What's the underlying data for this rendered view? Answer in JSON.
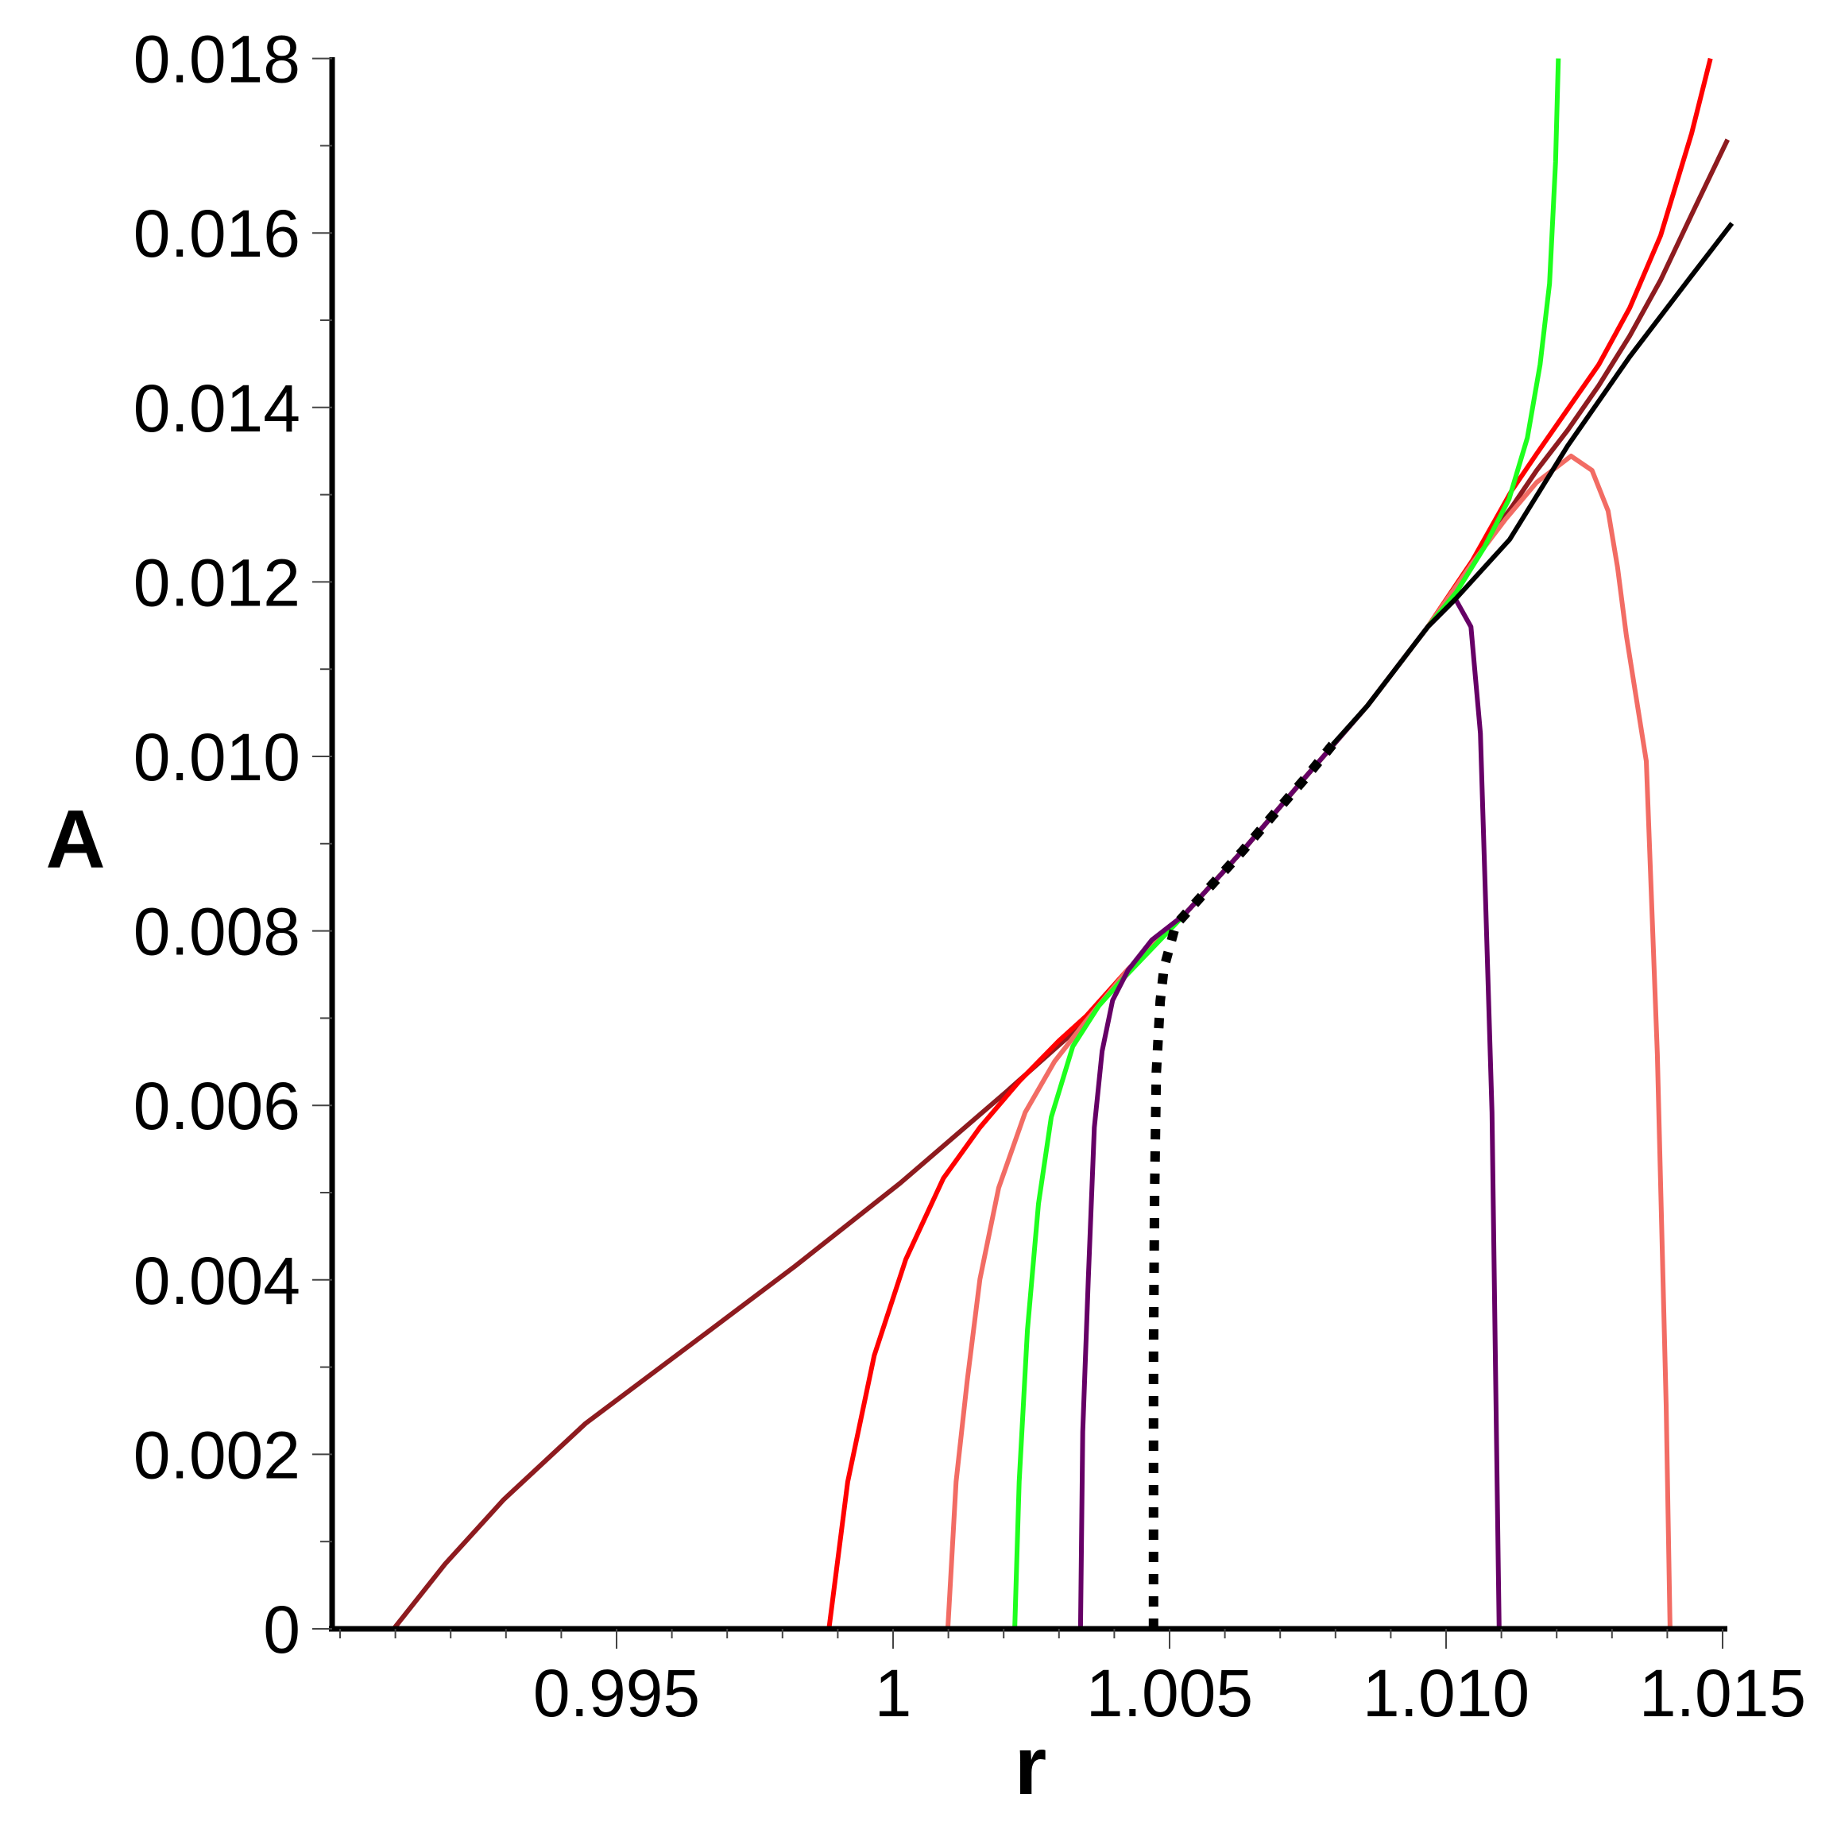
{
  "chart_data": {
    "type": "line",
    "title": "",
    "xlabel": "r",
    "ylabel": "A",
    "xlim": [
      0.98984,
      1.015
    ],
    "ylim": [
      0,
      0.018
    ],
    "grid": false,
    "legend": null,
    "x_ticks": {
      "major": [
        0.995,
        1.0,
        1.005,
        1.01,
        1.015
      ],
      "labels": [
        "0.995",
        "1",
        "1.005",
        "1.010",
        "1.015"
      ],
      "minor_step": 0.001
    },
    "y_ticks": {
      "major": [
        0,
        0.002,
        0.004,
        0.006,
        0.008,
        0.01,
        0.012,
        0.014,
        0.016,
        0.018
      ],
      "labels": [
        "0",
        "0.002",
        "0.004",
        "0.006",
        "0.008",
        "0.010",
        "0.012",
        "0.014",
        "0.016",
        "0.018"
      ],
      "minor_step": 0.001
    },
    "series": [
      {
        "name": "brown",
        "color": "#8E1B1F",
        "style": "solid",
        "points": [
          [
            0.99097,
            0
          ],
          [
            0.9919,
            0.000743
          ],
          [
            0.99296,
            0.001482
          ],
          [
            0.99444,
            0.002354
          ],
          [
            0.99656,
            0.003362
          ],
          [
            0.99822,
            0.004153
          ],
          [
            1.00013,
            0.005109
          ],
          [
            1.00205,
            0.006157
          ],
          [
            1.00349,
            0.006967
          ],
          [
            1.00425,
            0.00755
          ],
          [
            1.00527,
            0.008188
          ],
          [
            1.00638,
            0.008962
          ],
          [
            1.00747,
            0.009772
          ],
          [
            1.00858,
            0.010583
          ],
          [
            1.00967,
            0.011485
          ],
          [
            1.01048,
            0.01224
          ],
          [
            1.01119,
            0.01286
          ],
          [
            1.01164,
            0.01328
          ],
          [
            1.0122,
            0.01374
          ],
          [
            1.01276,
            0.01425
          ],
          [
            1.01332,
            0.01482
          ],
          [
            1.01388,
            0.01546
          ],
          [
            1.01444,
            0.01621
          ],
          [
            1.01509,
            0.01707
          ]
        ]
      },
      {
        "name": "red",
        "color": "#FF0000",
        "style": "solid",
        "points": [
          [
            0.99884,
            0
          ],
          [
            0.99918,
            0.001685
          ],
          [
            0.99966,
            0.003133
          ],
          [
            1.00023,
            0.004235
          ],
          [
            1.00091,
            0.005164
          ],
          [
            1.00157,
            0.005747
          ],
          [
            1.00228,
            0.006275
          ],
          [
            1.003,
            0.00674
          ],
          [
            1.00349,
            0.007022
          ],
          [
            1.00425,
            0.00756
          ],
          [
            1.00527,
            0.008188
          ],
          [
            1.00638,
            0.008962
          ],
          [
            1.00747,
            0.009772
          ],
          [
            1.00858,
            0.010583
          ],
          [
            1.00967,
            0.011485
          ],
          [
            1.01048,
            0.01225
          ],
          [
            1.01119,
            0.01305
          ],
          [
            1.01164,
            0.01347
          ],
          [
            1.0122,
            0.01398
          ],
          [
            1.01276,
            0.01449
          ],
          [
            1.01332,
            0.01514
          ],
          [
            1.01388,
            0.01597
          ],
          [
            1.01444,
            0.01714
          ],
          [
            1.01478,
            0.018
          ]
        ]
      },
      {
        "name": "salmon",
        "color": "#F26C64",
        "style": "solid",
        "points": [
          [
            1.00099,
            0
          ],
          [
            1.00114,
            0.001685
          ],
          [
            1.00134,
            0.002842
          ],
          [
            1.00157,
            0.004007
          ],
          [
            1.00191,
            0.005055
          ],
          [
            1.00239,
            0.00592
          ],
          [
            1.00292,
            0.006503
          ],
          [
            1.00349,
            0.006967
          ],
          [
            1.00425,
            0.00756
          ],
          [
            1.00527,
            0.008188
          ],
          [
            1.00638,
            0.008962
          ],
          [
            1.00747,
            0.009772
          ],
          [
            1.00858,
            0.010583
          ],
          [
            1.00967,
            0.011485
          ],
          [
            1.01048,
            0.01222
          ],
          [
            1.01108,
            0.012723
          ],
          [
            1.01164,
            0.013142
          ],
          [
            1.01226,
            0.013443
          ],
          [
            1.01264,
            0.013279
          ],
          [
            1.01293,
            0.012814
          ],
          [
            1.0131,
            0.012168
          ],
          [
            1.01326,
            0.011384
          ],
          [
            1.01362,
            0.009945
          ],
          [
            1.01382,
            0.006585
          ],
          [
            1.01398,
            0.002559
          ],
          [
            1.01405,
            0
          ]
        ]
      },
      {
        "name": "green",
        "color": "#1EFF1E",
        "style": "solid",
        "points": [
          [
            1.0022,
            0
          ],
          [
            1.00228,
            0.001685
          ],
          [
            1.00243,
            0.003424
          ],
          [
            1.00263,
            0.004872
          ],
          [
            1.00286,
            0.005865
          ],
          [
            1.00325,
            0.006676
          ],
          [
            1.00372,
            0.00714
          ],
          [
            1.00421,
            0.007486
          ],
          [
            1.00527,
            0.008188
          ],
          [
            1.00638,
            0.008962
          ],
          [
            1.00747,
            0.009772
          ],
          [
            1.00858,
            0.010583
          ],
          [
            1.00967,
            0.011485
          ],
          [
            1.01019,
            0.011885
          ],
          [
            1.01069,
            0.012395
          ],
          [
            1.01114,
            0.012951
          ],
          [
            1.01147,
            0.013652
          ],
          [
            1.0117,
            0.01449
          ],
          [
            1.01187,
            0.015419
          ],
          [
            1.01198,
            0.016812
          ],
          [
            1.01203,
            0.018
          ]
        ]
      },
      {
        "name": "purple",
        "color": "#660066",
        "style": "solid",
        "points": [
          [
            1.00339,
            0
          ],
          [
            1.00343,
            0.002259
          ],
          [
            1.00353,
            0.004007
          ],
          [
            1.00364,
            0.005747
          ],
          [
            1.00378,
            0.006621
          ],
          [
            1.00397,
            0.007204
          ],
          [
            1.00425,
            0.00755
          ],
          [
            1.00468,
            0.007896
          ],
          [
            1.00527,
            0.008188
          ],
          [
            1.00638,
            0.008962
          ],
          [
            1.00747,
            0.009772
          ],
          [
            1.00858,
            0.010583
          ],
          [
            1.00967,
            0.011485
          ],
          [
            1.01017,
            0.011803
          ],
          [
            1.01045,
            0.011485
          ],
          [
            1.01062,
            0.010264
          ],
          [
            1.01072,
            0.008233
          ],
          [
            1.01083,
            0.00592
          ],
          [
            1.01089,
            0.00319
          ],
          [
            1.01096,
            0
          ]
        ]
      },
      {
        "name": "black-dotted",
        "color": "#000000",
        "style": "dotted",
        "points": [
          [
            1.00471,
            0
          ],
          [
            1.00471,
            0.001366
          ],
          [
            1.00471,
            0.003188
          ],
          [
            1.00473,
            0.005009
          ],
          [
            1.00476,
            0.006375
          ],
          [
            1.00483,
            0.007195
          ],
          [
            1.0049,
            0.007577
          ],
          [
            1.00511,
            0.008069
          ],
          [
            1.00572,
            0.008497
          ],
          [
            1.00632,
            0.008916
          ],
          [
            1.00687,
            0.009326
          ],
          [
            1.00746,
            0.009754
          ],
          [
            1.00795,
            0.010137
          ]
        ]
      },
      {
        "name": "black",
        "color": "#000000",
        "style": "solid",
        "points": [
          [
            1.00795,
            0.010137
          ],
          [
            1.00858,
            0.010583
          ],
          [
            1.00967,
            0.011485
          ],
          [
            1.01017,
            0.011803
          ],
          [
            1.01115,
            0.012486
          ],
          [
            1.0122,
            0.013561
          ],
          [
            1.01332,
            0.014581
          ],
          [
            1.01444,
            0.01551
          ],
          [
            1.01517,
            0.01611
          ]
        ]
      }
    ]
  }
}
